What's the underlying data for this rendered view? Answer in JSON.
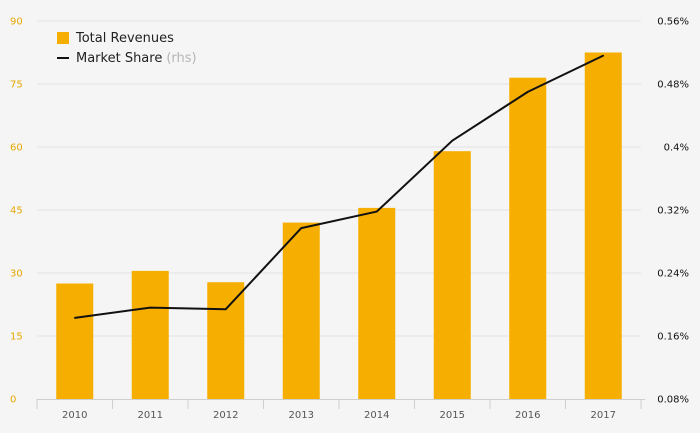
{
  "chart_data": {
    "type": "bar",
    "categories": [
      "2010",
      "2011",
      "2012",
      "2013",
      "2014",
      "2015",
      "2016",
      "2017"
    ],
    "series": [
      {
        "name": "Total Revenues",
        "type": "bar",
        "axis": "left",
        "values": [
          27.5,
          30.5,
          27.8,
          42,
          45.5,
          59,
          76.5,
          82.5
        ]
      },
      {
        "name": "Market Share",
        "type": "line",
        "axis": "right",
        "values": [
          0.183,
          0.196,
          0.194,
          0.297,
          0.318,
          0.408,
          0.47,
          0.516
        ]
      }
    ],
    "ylim_left": [
      0,
      90
    ],
    "yticks_left": [
      0,
      15,
      30,
      45,
      60,
      75,
      90
    ],
    "ytick_labels_left": [
      "0",
      "15",
      "30",
      "45",
      "60",
      "75",
      "90"
    ],
    "ylim_right": [
      0.08,
      0.56
    ],
    "yticks_right": [
      0.08,
      0.16,
      0.24,
      0.32,
      0.4,
      0.48,
      0.56
    ],
    "ytick_labels_right": [
      "0.08%",
      "0.16%",
      "0.24%",
      "0.32%",
      "0.4%",
      "0.48%",
      "0.56%"
    ],
    "legend": {
      "position": "top-left",
      "bar_label": "Total Revenues",
      "line_label": "Market Share",
      "line_suffix": "(rhs)"
    },
    "grid": true,
    "colors": {
      "bar": "#f6ae00",
      "line": "#111111",
      "grid": "#e3e3e3",
      "left_ticks": "#e5a800"
    }
  }
}
